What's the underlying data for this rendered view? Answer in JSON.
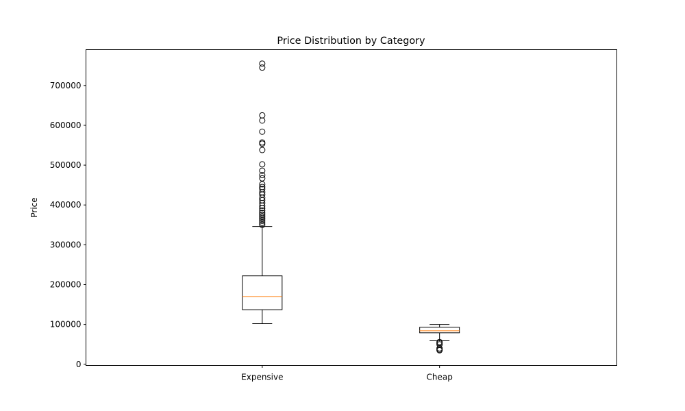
{
  "chart_data": {
    "type": "box",
    "title": "Price Distribution by Category",
    "xlabel": "",
    "ylabel": "Price",
    "categories": [
      "Expensive",
      "Cheap"
    ],
    "ylim": [
      -3000,
      790000
    ],
    "yticks": [
      0,
      100000,
      200000,
      300000,
      400000,
      500000,
      600000,
      700000
    ],
    "ytick_labels": [
      "0",
      "100000",
      "200000",
      "300000",
      "400000",
      "500000",
      "600000",
      "700000"
    ],
    "grid": false,
    "boxes": [
      {
        "category": "Expensive",
        "whisker_low": 102000,
        "q1": 137000,
        "median": 170000,
        "q3": 222000,
        "whisker_high": 346000,
        "outliers": [
          755000,
          745000,
          625000,
          612000,
          584000,
          557000,
          554000,
          538000,
          502000,
          486000,
          475000,
          467000,
          452000,
          445000,
          440000,
          432000,
          426000,
          418000,
          412000,
          405000,
          398000,
          392000,
          386000,
          380000,
          375000,
          370000,
          365000,
          360000,
          355000,
          350000
        ]
      },
      {
        "category": "Cheap",
        "whisker_low": 59000,
        "q1": 79000,
        "median": 84000,
        "q3": 93000,
        "whisker_high": 100000,
        "outliers": [
          56000,
          53000,
          50000,
          40000,
          37000,
          35000
        ]
      }
    ],
    "colors": {
      "box": "#000000",
      "median": "#ff7f0e",
      "outlier": "#000000"
    }
  }
}
